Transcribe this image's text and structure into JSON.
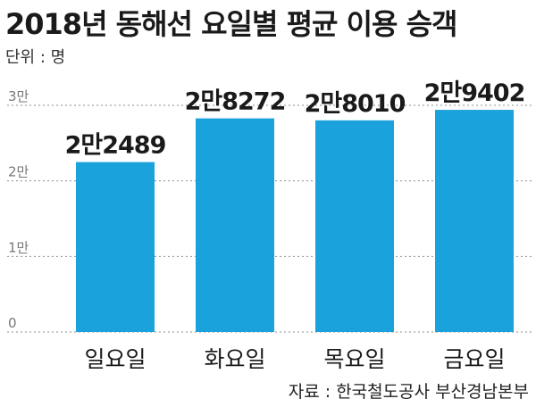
{
  "chart_data": {
    "type": "bar",
    "title": "2018년 동해선 요일별 평균 이용 승객",
    "unit_label": "단위 : 명",
    "source": "자료 : 한국철도공사 부산경남본부",
    "categories": [
      "일요일",
      "화요일",
      "목요일",
      "금요일"
    ],
    "values": [
      22489,
      28272,
      28010,
      29402
    ],
    "data_labels": [
      "2만2489",
      "2만8272",
      "2만8010",
      "2만9402"
    ],
    "ylim": [
      0,
      30000
    ],
    "yticks": [
      {
        "value": 0,
        "label": "0"
      },
      {
        "value": 10000,
        "label": "1만"
      },
      {
        "value": 20000,
        "label": "2만"
      },
      {
        "value": 30000,
        "label": "3만"
      }
    ],
    "grid": true,
    "bar_color": "#1aa2dc"
  }
}
